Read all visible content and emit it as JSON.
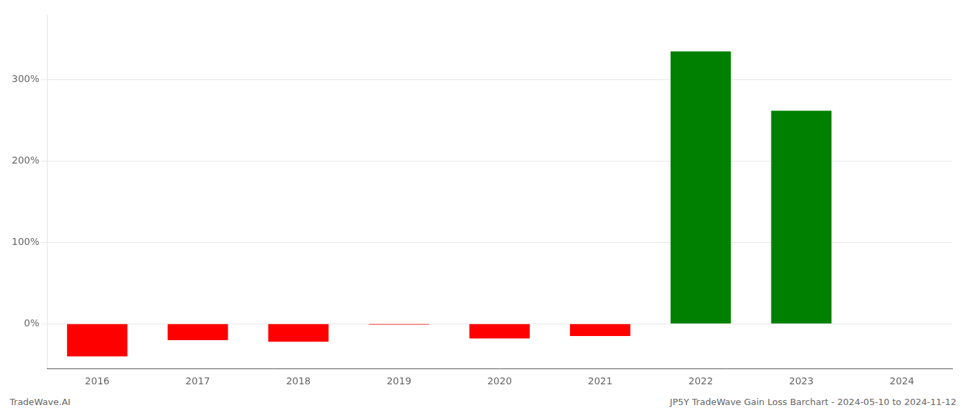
{
  "chart_data": {
    "type": "bar",
    "categories": [
      "2016",
      "2017",
      "2018",
      "2019",
      "2020",
      "2021",
      "2022",
      "2023",
      "2024"
    ],
    "values": [
      -40,
      -20,
      -22,
      -1,
      -18,
      -15,
      335,
      262,
      0
    ],
    "colors": [
      "#ff0000",
      "#ff0000",
      "#ff0000",
      "#ff0000",
      "#ff0000",
      "#ff0000",
      "#008000",
      "#008000",
      "#008000"
    ],
    "ylim": [
      -55,
      380
    ],
    "yticks": [
      {
        "value": 0,
        "label": "0%"
      },
      {
        "value": 100,
        "label": "100%"
      },
      {
        "value": 200,
        "label": "200%"
      },
      {
        "value": 300,
        "label": "300%"
      }
    ],
    "grid": true,
    "annotations": [
      "TradeWave.AI",
      "JP5Y TradeWave Gain Loss Barchart - 2024-05-10 to 2024-11-12"
    ]
  }
}
